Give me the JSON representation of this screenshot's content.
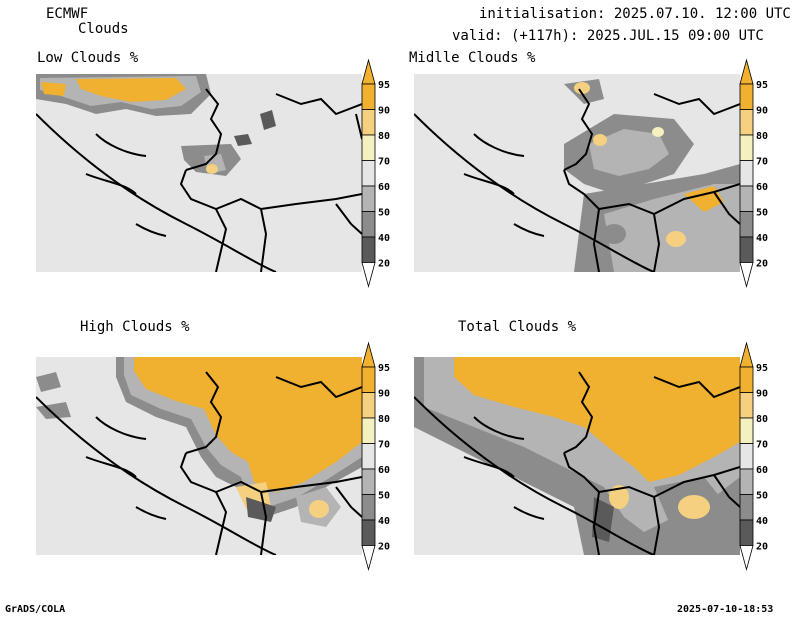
{
  "header": {
    "model": "ECMWF",
    "product": "Clouds",
    "initialisation": "initialisation: 2025.07.10. 12:00 UTC",
    "valid": "valid: (+117h): 2025.JUL.15 09:00 UTC"
  },
  "panels": [
    {
      "title": "Low Clouds %"
    },
    {
      "title": "Midlle Clouds %"
    },
    {
      "title": "High Clouds %"
    },
    {
      "title": "Total Clouds %"
    }
  ],
  "colorbar": {
    "levels": [
      "95",
      "90",
      "80",
      "70",
      "60",
      "50",
      "40",
      "20"
    ],
    "colors": [
      "#f0b030",
      "#f0b030",
      "#f5d080",
      "#f5f0c0",
      "#e6e6e6",
      "#b4b4b4",
      "#8c8c8c",
      "#5a5a5a",
      "#ffffff"
    ]
  },
  "footer": {
    "left": "GrADS/COLA",
    "right": "2025-07-10-18:53"
  },
  "colors": {
    "background": "#e6e6e6",
    "cloud_high": "#f0b030",
    "cloud_mid": "#f5d080",
    "border": "#000000"
  }
}
